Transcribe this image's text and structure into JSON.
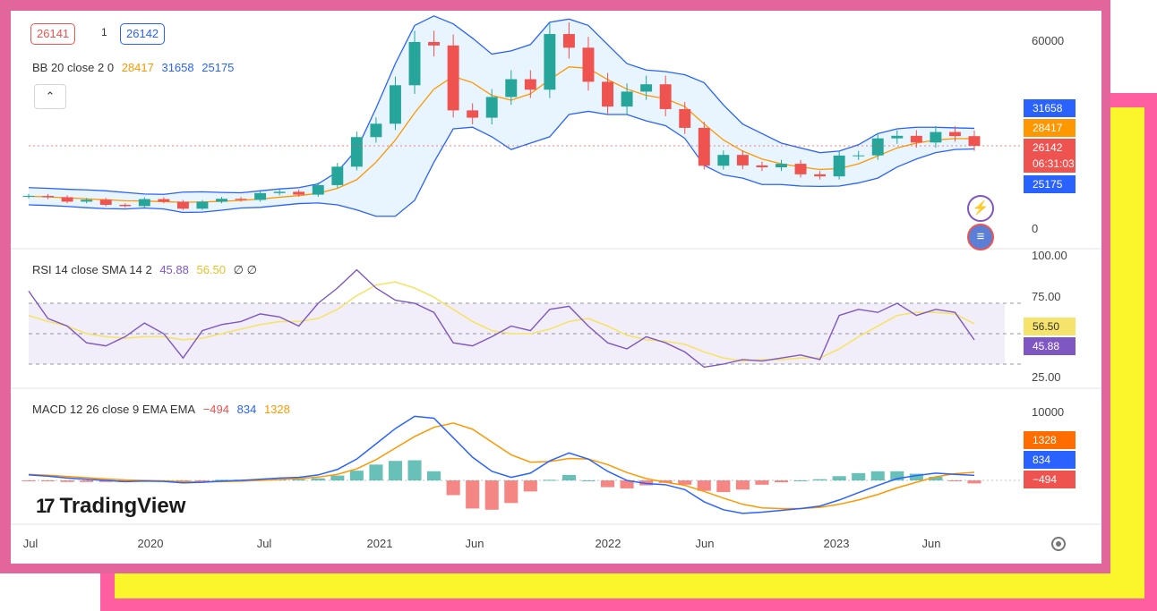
{
  "header": {
    "ticker_bid": "26141",
    "ticker_spread": "1",
    "ticker_ask": "26142"
  },
  "legends": {
    "bb": {
      "name": "BB 20 close 2 0",
      "basis": "28417",
      "upper": "31658",
      "lower": "25175"
    },
    "rsi": {
      "name": "RSI 14 close SMA 14 2",
      "rsi": "45.88",
      "sma": "56.50",
      "extra": "∅ ∅"
    },
    "macd": {
      "name": "MACD 12 26 close 9 EMA EMA",
      "hist": "−494",
      "macd": "834",
      "signal": "1328"
    }
  },
  "price_labels": {
    "upper": "31658",
    "basis": "28417",
    "last": "26142",
    "countdown": "06:31:03",
    "lower": "25175",
    "rsi_sma": "56.50",
    "rsi": "45.88",
    "macd_signal": "1328",
    "macd": "834",
    "macd_hist": "−494"
  },
  "axes": {
    "price_ticks": [
      "60000",
      "0"
    ],
    "rsi_ticks": [
      "100.00",
      "75.00",
      "25.00"
    ],
    "macd_ticks": [
      "10000"
    ],
    "time_ticks": [
      "Jul",
      "2020",
      "Jul",
      "2021",
      "Jun",
      "2022",
      "Jun",
      "2023",
      "Jun"
    ]
  },
  "logo": {
    "text": "TradingView",
    "mark": "17"
  },
  "collapse_glyph": "⌃",
  "icons": {
    "flash": "⚡",
    "flag": "≡"
  },
  "colors": {
    "frame_pink": "#e2669b",
    "frame_yellow": "#fbf62b",
    "candle_up": "#26a69a",
    "candle_down": "#ef5350",
    "bb_band": "#2962ff",
    "bb_basis": "#ff9800",
    "rsi_line": "#7e57c2",
    "rsi_sma": "#f5e36b",
    "macd_line": "#2962ff",
    "signal_line": "#ff9800"
  },
  "chart_data": [
    {
      "type": "line",
      "title": "BB 20 close 2 0",
      "x": [
        "2019-Jul",
        "2019-Aug",
        "2019-Sep",
        "2019-Oct",
        "2019-Nov",
        "2019-Dec",
        "2020-Jan",
        "2020-Feb",
        "2020-Mar",
        "2020-Apr",
        "2020-May",
        "2020-Jun",
        "2020-Jul",
        "2020-Aug",
        "2020-Sep",
        "2020-Oct",
        "2020-Nov",
        "2020-Dec",
        "2021-Jan",
        "2021-Feb",
        "2021-Mar",
        "2021-Apr",
        "2021-May",
        "2021-Jun",
        "2021-Jul",
        "2021-Aug",
        "2021-Sep",
        "2021-Oct",
        "2021-Nov",
        "2021-Dec",
        "2022-Jan",
        "2022-Feb",
        "2022-Mar",
        "2022-Apr",
        "2022-May",
        "2022-Jun",
        "2022-Jul",
        "2022-Aug",
        "2022-Sep",
        "2022-Oct",
        "2022-Nov",
        "2022-Dec",
        "2023-Jan",
        "2023-Feb",
        "2023-Mar",
        "2023-Apr",
        "2023-May",
        "2023-Jun",
        "2023-Jul",
        "2023-Aug"
      ],
      "series": [
        {
          "name": "close",
          "values": [
            10400,
            10000,
            8600,
            9200,
            7600,
            7200,
            9400,
            8600,
            6400,
            8600,
            9500,
            9150,
            11300,
            11700,
            10800,
            13800,
            19600,
            28900,
            33100,
            45200,
            58800,
            57700,
            37300,
            35000,
            41500,
            47100,
            43800,
            61300,
            57000,
            46300,
            38500,
            43200,
            45500,
            37700,
            31800,
            19900,
            23300,
            20000,
            19400,
            20500,
            17200,
            16550,
            23100,
            23150,
            28500,
            29300,
            27200,
            30500,
            29200,
            26142
          ]
        },
        {
          "name": "upper",
          "values": [
            13000,
            12800,
            12500,
            12300,
            12000,
            11500,
            11000,
            10900,
            11600,
            11700,
            11500,
            11400,
            12000,
            12600,
            13000,
            14200,
            18000,
            25000,
            38000,
            52000,
            64000,
            67000,
            64500,
            60000,
            55000,
            56000,
            58000,
            65000,
            66000,
            64000,
            58000,
            52000,
            50000,
            49500,
            48500,
            46000,
            39000,
            33000,
            30000,
            27000,
            25500,
            24000,
            24500,
            26500,
            30000,
            31500,
            32000,
            32000,
            31800,
            31658
          ]
        },
        {
          "name": "basis",
          "values": [
            10300,
            10100,
            9800,
            9500,
            9200,
            8900,
            8800,
            8600,
            8400,
            8500,
            8700,
            9000,
            9400,
            10000,
            10500,
            11200,
            12800,
            15500,
            21000,
            28000,
            36500,
            44000,
            48000,
            46000,
            42000,
            40500,
            42500,
            47000,
            51000,
            50500,
            47000,
            44000,
            42000,
            41000,
            38500,
            33000,
            28000,
            24500,
            22000,
            20500,
            19500,
            18700,
            19000,
            20500,
            23000,
            25500,
            27000,
            28000,
            28400,
            28417
          ]
        },
        {
          "name": "lower",
          "values": [
            7600,
            7400,
            7100,
            6700,
            6400,
            6300,
            6600,
            6300,
            5200,
            5300,
            5900,
            6600,
            6800,
            7400,
            8000,
            8200,
            7600,
            6000,
            4000,
            4000,
            9000,
            21000,
            31500,
            32000,
            29000,
            25000,
            27000,
            29000,
            36000,
            37000,
            36000,
            36000,
            34000,
            32500,
            28500,
            20000,
            17000,
            16000,
            14000,
            14000,
            13500,
            13400,
            13500,
            14500,
            16000,
            19500,
            22000,
            24000,
            25000,
            25175
          ]
        }
      ],
      "xlabel": "",
      "ylabel": "",
      "ylim": [
        0,
        63000
      ],
      "grid": false
    },
    {
      "type": "line",
      "title": "RSI 14 close SMA 14 2",
      "x": [
        "2019-Jul",
        "2019-Aug",
        "2019-Sep",
        "2019-Oct",
        "2019-Nov",
        "2019-Dec",
        "2020-Jan",
        "2020-Feb",
        "2020-Mar",
        "2020-Apr",
        "2020-May",
        "2020-Jun",
        "2020-Jul",
        "2020-Aug",
        "2020-Sep",
        "2020-Oct",
        "2020-Nov",
        "2020-Dec",
        "2021-Jan",
        "2021-Feb",
        "2021-Mar",
        "2021-Apr",
        "2021-May",
        "2021-Jun",
        "2021-Jul",
        "2021-Aug",
        "2021-Sep",
        "2021-Oct",
        "2021-Nov",
        "2021-Dec",
        "2022-Jan",
        "2022-Feb",
        "2022-Mar",
        "2022-Apr",
        "2022-May",
        "2022-Jun",
        "2022-Jul",
        "2022-Aug",
        "2022-Sep",
        "2022-Oct",
        "2022-Nov",
        "2022-Dec",
        "2023-Jan",
        "2023-Feb",
        "2023-Mar",
        "2023-Apr",
        "2023-May",
        "2023-Jun",
        "2023-Jul",
        "2023-Aug"
      ],
      "series": [
        {
          "name": "RSI",
          "values": [
            78,
            60,
            55,
            44,
            42,
            48,
            57,
            50,
            34,
            52,
            56,
            58,
            63,
            61,
            55,
            70,
            80,
            92,
            80,
            72,
            70,
            64,
            44,
            42,
            48,
            55,
            52,
            66,
            68,
            55,
            44,
            40,
            48,
            44,
            38,
            28,
            30,
            33,
            32,
            34,
            36,
            33,
            62,
            66,
            64,
            70,
            62,
            66,
            64,
            45.88
          ]
        },
        {
          "name": "SMA",
          "values": [
            62,
            58,
            55,
            50,
            48,
            47,
            48,
            48,
            46,
            47,
            50,
            53,
            56,
            58,
            58,
            60,
            66,
            75,
            82,
            84,
            80,
            74,
            66,
            58,
            52,
            50,
            50,
            53,
            58,
            60,
            55,
            49,
            46,
            45,
            43,
            38,
            34,
            32,
            33,
            33,
            34,
            34,
            40,
            48,
            55,
            62,
            64,
            64,
            63,
            56.5
          ]
        }
      ],
      "ylim": [
        20,
        100
      ],
      "bands": {
        "upper": 70,
        "middle": 50,
        "lower": 30
      }
    },
    {
      "type": "line",
      "title": "MACD 12 26 close 9 EMA EMA",
      "x": [
        "2019-Jul",
        "2019-Aug",
        "2019-Sep",
        "2019-Oct",
        "2019-Nov",
        "2019-Dec",
        "2020-Jan",
        "2020-Feb",
        "2020-Mar",
        "2020-Apr",
        "2020-May",
        "2020-Jun",
        "2020-Jul",
        "2020-Aug",
        "2020-Sep",
        "2020-Oct",
        "2020-Nov",
        "2020-Dec",
        "2021-Jan",
        "2021-Feb",
        "2021-Mar",
        "2021-Apr",
        "2021-May",
        "2021-Jun",
        "2021-Jul",
        "2021-Aug",
        "2021-Sep",
        "2021-Oct",
        "2021-Nov",
        "2021-Dec",
        "2022-Jan",
        "2022-Feb",
        "2022-Mar",
        "2022-Apr",
        "2022-May",
        "2022-Jun",
        "2022-Jul",
        "2022-Aug",
        "2022-Sep",
        "2022-Oct",
        "2022-Nov",
        "2022-Dec",
        "2023-Jan",
        "2023-Feb",
        "2023-Mar",
        "2023-Apr",
        "2023-May",
        "2023-Jun",
        "2023-Jul",
        "2023-Aug"
      ],
      "series": [
        {
          "name": "MACD",
          "values": [
            900,
            700,
            400,
            200,
            0,
            -200,
            -100,
            -150,
            -400,
            -300,
            -100,
            0,
            200,
            400,
            500,
            900,
            1800,
            3500,
            6000,
            8500,
            10500,
            10200,
            7000,
            3800,
            1500,
            500,
            1200,
            3200,
            4500,
            3500,
            1500,
            0,
            -500,
            -700,
            -1500,
            -3500,
            -4800,
            -5400,
            -5200,
            -4900,
            -4600,
            -4200,
            -3200,
            -2000,
            -800,
            300,
            800,
            1200,
            1000,
            834
          ]
        },
        {
          "name": "Signal",
          "values": [
            1000,
            850,
            650,
            450,
            250,
            80,
            0,
            -60,
            -200,
            -250,
            -200,
            -120,
            0,
            150,
            300,
            550,
            1000,
            1900,
            3400,
            5300,
            7200,
            8700,
            9400,
            8400,
            6300,
            4200,
            3000,
            3100,
            3600,
            3500,
            2600,
            1300,
            300,
            -300,
            -800,
            -1800,
            -2900,
            -3900,
            -4500,
            -4600,
            -4600,
            -4400,
            -3900,
            -3200,
            -2300,
            -1200,
            -300,
            600,
            1100,
            1328
          ]
        },
        {
          "name": "Histogram",
          "values": [
            -100,
            -150,
            -250,
            -250,
            -250,
            -280,
            -100,
            -90,
            -200,
            -50,
            100,
            120,
            200,
            250,
            200,
            350,
            800,
            1600,
            2600,
            3200,
            3300,
            1500,
            -2400,
            -4600,
            -4800,
            -3700,
            -1800,
            100,
            900,
            0,
            -1100,
            -1300,
            -800,
            -400,
            -700,
            -1700,
            -1900,
            -1500,
            -700,
            -300,
            0,
            200,
            700,
            1200,
            1500,
            1500,
            1100,
            600,
            -100,
            -494
          ]
        }
      ],
      "yticks": [
        10000
      ]
    }
  ]
}
